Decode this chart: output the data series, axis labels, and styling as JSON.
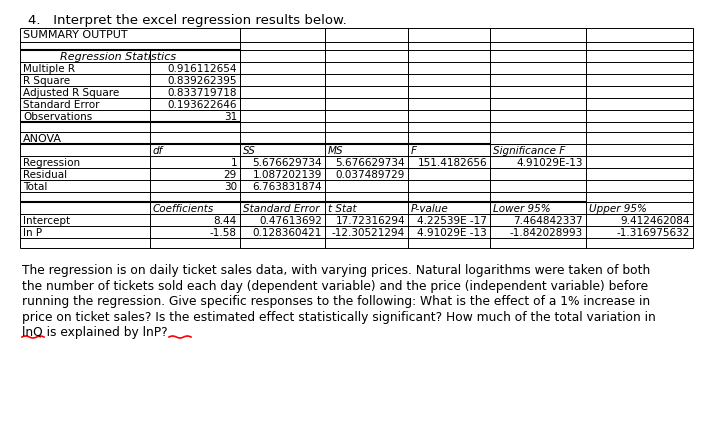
{
  "question": "4.   Interpret the excel regression results below.",
  "summary_output_label": "SUMMARY OUTPUT",
  "reg_stats_label": "Regression Statistics",
  "reg_stats": [
    [
      "Multiple R",
      "0.916112654"
    ],
    [
      "R Square",
      "0.839262395"
    ],
    [
      "Adjusted R Square",
      "0.833719718"
    ],
    [
      "Standard Error",
      "0.193622646"
    ],
    [
      "Observations",
      "31"
    ]
  ],
  "anova_label": "ANOVA",
  "anova_headers": [
    "",
    "df",
    "SS",
    "MS",
    "F",
    "Significance F"
  ],
  "anova_rows": [
    [
      "Regression",
      "1",
      "5.676629734",
      "5.676629734",
      "151.4182656",
      "4.91029E-13"
    ],
    [
      "Residual",
      "29",
      "1.087202139",
      "0.037489729",
      "",
      ""
    ],
    [
      "Total",
      "30",
      "6.763831874",
      "",
      "",
      ""
    ]
  ],
  "coeff_headers": [
    "",
    "Coefficients",
    "Standard Error",
    "t Stat",
    "P-value",
    "Lower 95%",
    "Upper 95%"
  ],
  "coeff_rows": [
    [
      "Intercept",
      "8.44",
      "0.47613692",
      "17.72316294",
      "4.22539E -17",
      "7.464842337",
      "9.412462084"
    ],
    [
      "ln P",
      "-1.58",
      "0.128360421",
      "-12.30521294",
      "4.91029E -13",
      "-1.842028993",
      "-1.316975632"
    ]
  ],
  "para_lines": [
    "The regression is on daily ticket sales data, with varying prices. Natural logarithms were taken of both",
    "the number of tickets sold each day (dependent variable) and the price (independent variable) before",
    "running the regression. Give specific responses to the following: What is the effect of a 1% increase in",
    "price on ticket sales? Is the estimated effect statistically significant? How much of the total variation in",
    "lnQ is explained by lnP?"
  ],
  "bg_color": "#ffffff",
  "line_color": "#000000",
  "text_color": "#000000"
}
